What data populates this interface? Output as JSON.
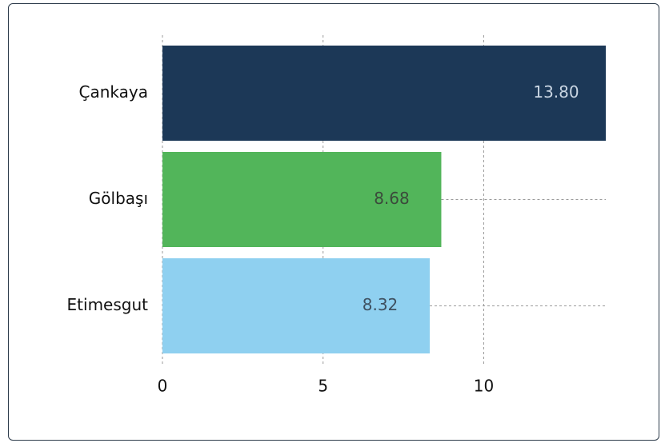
{
  "chart_data": {
    "type": "hbar",
    "categories": [
      "Çankaya",
      "Gölbaşı",
      "Etimesgut"
    ],
    "values": [
      13.8,
      8.68,
      8.32
    ],
    "value_labels": [
      "13.80",
      "8.68",
      "8.32"
    ],
    "colors": [
      "#1c3857",
      "#52b55a",
      "#8fd0f0"
    ],
    "label_colors": [
      "#c9d5e2",
      "#3b4a3b",
      "#3e5060"
    ],
    "xlim": [
      0,
      13.8
    ],
    "xticks": [
      0,
      5,
      10
    ],
    "grid": true
  }
}
